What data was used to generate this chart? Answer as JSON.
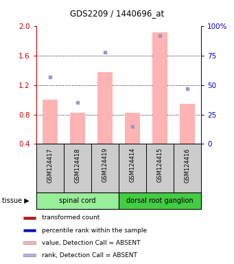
{
  "title": "GDS2209 / 1440696_at",
  "samples": [
    "GSM124417",
    "GSM124418",
    "GSM124419",
    "GSM124414",
    "GSM124415",
    "GSM124416"
  ],
  "bar_values": [
    1.0,
    0.82,
    1.38,
    0.82,
    1.92,
    0.95
  ],
  "dot_values_pct": [
    57,
    35,
    78,
    15,
    92,
    47
  ],
  "bar_color": "#ffb3b3",
  "dot_color": "#9999cc",
  "ylim_left": [
    0.4,
    2.0
  ],
  "ylim_right": [
    0,
    100
  ],
  "yticks_left": [
    0.4,
    0.8,
    1.2,
    1.6,
    2.0
  ],
  "yticks_right": [
    0,
    25,
    50,
    75,
    100
  ],
  "ytick_labels_right": [
    "0",
    "25",
    "50",
    "75",
    "100%"
  ],
  "group1_label": "spinal cord",
  "group1_color": "#99ee99",
  "group2_label": "dorsal root ganglion",
  "group2_color": "#44cc44",
  "tissue_label": "tissue",
  "legend_items": [
    {
      "label": "transformed count",
      "color": "#cc0000"
    },
    {
      "label": "percentile rank within the sample",
      "color": "#0000cc"
    },
    {
      "label": "value, Detection Call = ABSENT",
      "color": "#ffb3b3"
    },
    {
      "label": "rank, Detection Call = ABSENT",
      "color": "#b3b3ee"
    }
  ],
  "left_axis_color": "#cc0000",
  "right_axis_color": "#0000cc"
}
